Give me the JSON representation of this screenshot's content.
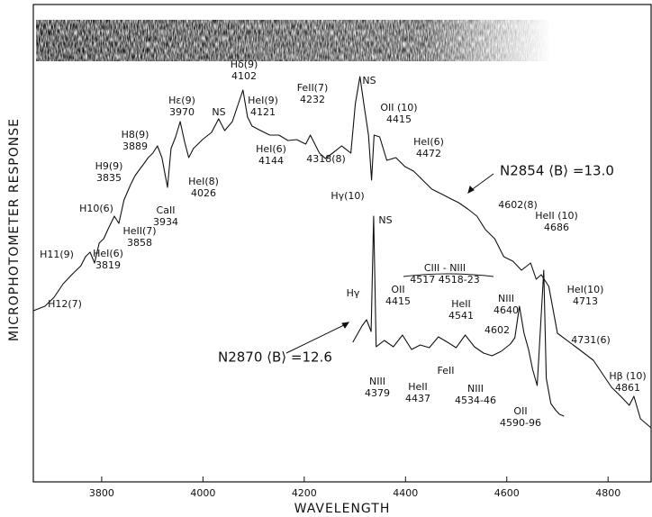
{
  "chart_data": {
    "type": "line",
    "x_label": "WAVELENGTH",
    "y_label": "MICROPHOTOMETER RESPONSE",
    "xlim": [
      3665,
      4885
    ],
    "xticks": [
      3800,
      4000,
      4200,
      4400,
      4600,
      4800
    ],
    "ylim": [
      0,
      106
    ],
    "series": [
      {
        "name": "N2854 ⟨B⟩ =13.0",
        "color": "#111111",
        "x": [
          3665,
          3688,
          3706,
          3724,
          3741,
          3759,
          3768,
          3777,
          3786,
          3795,
          3804,
          3812,
          3825,
          3834,
          3844,
          3857,
          3866,
          3875,
          3883,
          3892,
          3901,
          3910,
          3919,
          3930,
          3937,
          3946,
          3955,
          3964,
          3972,
          3981,
          3999,
          4017,
          4031,
          4043,
          4058,
          4070,
          4079,
          4088,
          4097,
          4114,
          4132,
          4150,
          4168,
          4185,
          4203,
          4212,
          4230,
          4242,
          4256,
          4274,
          4292,
          4301,
          4310,
          4319,
          4327,
          4333,
          4338,
          4349,
          4363,
          4381,
          4399,
          4416,
          4434,
          4452,
          4470,
          4487,
          4505,
          4523,
          4541,
          4558,
          4576,
          4594,
          4612,
          4629,
          4647,
          4658,
          4668,
          4683,
          4700,
          4736,
          4771,
          4807,
          4825,
          4842,
          4851,
          4864,
          4885
        ],
        "values": [
          38,
          39,
          41,
          44,
          46,
          48,
          50,
          51,
          48.6,
          53,
          54,
          56,
          59,
          57.4,
          62.6,
          66,
          68,
          69.4,
          70.6,
          72,
          73,
          74.6,
          72,
          65.4,
          74,
          76.6,
          80,
          75.4,
          72,
          74,
          76,
          77.6,
          80.6,
          78,
          80,
          84,
          87,
          81,
          79,
          78,
          77,
          77,
          75.8,
          76,
          75,
          77,
          73,
          71.8,
          73,
          74.6,
          73,
          84,
          90,
          83,
          77,
          67,
          77,
          76.6,
          71.4,
          72,
          70,
          69,
          67,
          65,
          64,
          63,
          62,
          60.6,
          59,
          56,
          54,
          50,
          49,
          47,
          48.6,
          45,
          46,
          43.4,
          33,
          30,
          27,
          21,
          19,
          17,
          19,
          14,
          12
        ]
      },
      {
        "name": "N2870 ⟨B⟩ =12.6",
        "color": "#111111",
        "x": [
          4296,
          4314,
          4323,
          4332,
          4337,
          4342,
          4358,
          4376,
          4394,
          4412,
          4429,
          4447,
          4465,
          4483,
          4500,
          4518,
          4536,
          4554,
          4571,
          4589,
          4607,
          4616,
          4625,
          4634,
          4643,
          4651,
          4660,
          4667,
          4673,
          4678,
          4687,
          4696,
          4704,
          4713
        ],
        "values": [
          31,
          34.6,
          36,
          33.4,
          59,
          30,
          31.4,
          30,
          32.6,
          29.4,
          30.4,
          29.8,
          32.2,
          31,
          29.8,
          32.6,
          30,
          28.6,
          28,
          29,
          30.6,
          32,
          39,
          33,
          29.4,
          25,
          21.4,
          35,
          47,
          23,
          17.4,
          16,
          15,
          14.6
        ]
      }
    ],
    "annotations": [
      [
        "H11(9)"
      ],
      [
        "H12(7)"
      ],
      [
        "H10(6)"
      ],
      [
        "HeI(6)",
        "3819"
      ],
      [
        "H9(9)",
        "3835"
      ],
      [
        "HeII(7)",
        "3858"
      ],
      [
        "H8(9)",
        "3889"
      ],
      [
        "CaII",
        "3934"
      ],
      [
        "Hε(9)",
        "3970"
      ],
      [
        "HeI(8)",
        "4026"
      ],
      [
        "NS"
      ],
      [
        "Hδ(9)",
        "4102"
      ],
      [
        "HeI(9)",
        "4121"
      ],
      [
        "HeI(6)",
        "4144"
      ],
      [
        "FeII(7)",
        "4232"
      ],
      [
        "4318(8)"
      ],
      [
        "NS"
      ],
      [
        "Hγ(10)"
      ],
      [
        "NS"
      ],
      [
        "OII (10)",
        "4415"
      ],
      [
        "HeI(6)",
        "4472"
      ],
      [
        "4602(8)"
      ],
      [
        "HeII (10)",
        "4686"
      ],
      [
        "CIII - NIII",
        "4517  4518-23"
      ],
      [
        "OII",
        "4415"
      ],
      [
        "Hγ"
      ],
      [
        "HeII",
        "4541"
      ],
      [
        "NIII",
        "4640"
      ],
      [
        "HeI(10)",
        "4713"
      ],
      [
        "4602"
      ],
      [
        "4731(6)"
      ],
      [
        "Hβ (10)",
        "4861"
      ],
      [
        "NIII",
        "4379"
      ],
      [
        "HeII",
        "4437"
      ],
      [
        "FeII"
      ],
      [
        "NIII",
        "4534-46"
      ],
      [
        "OII",
        "4590-96"
      ]
    ]
  }
}
